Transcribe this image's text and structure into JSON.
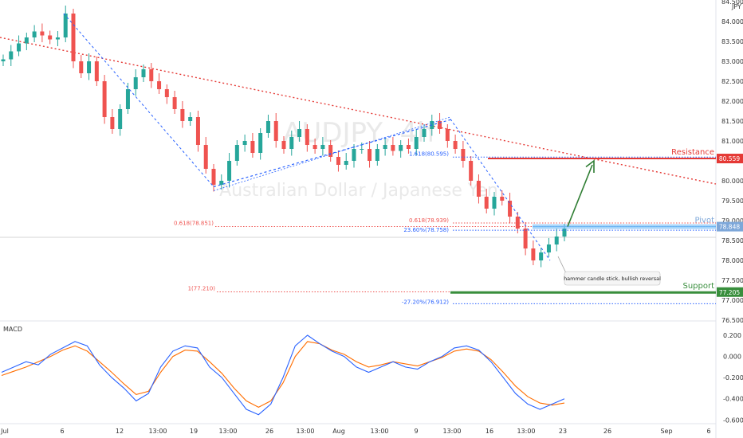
{
  "chart_data": {
    "type": "candlestick",
    "currency_unit": "JPY",
    "watermark_symbol": "AUDJPY, 4h",
    "watermark_name": "Australian Dollar / Japanese Yen",
    "price_axis": {
      "min": 76.5,
      "max": 84.5,
      "ticks": [
        "84.500",
        "84.000",
        "83.500",
        "83.000",
        "82.500",
        "82.000",
        "81.500",
        "81.000",
        "80.500",
        "80.000",
        "79.500",
        "79.000",
        "78.500",
        "78.000",
        "77.500",
        "77.000",
        "76.500"
      ]
    },
    "x_axis_ticks": [
      "Jul",
      "6",
      "12",
      "13:00",
      "19",
      "13:00",
      "26",
      "13:00",
      "Aug",
      "13:00",
      "9",
      "13:00",
      "16",
      "13:00",
      "23",
      "26",
      "Sep",
      "6"
    ],
    "price_labels": {
      "resistance": "80.559",
      "pivot": "78.848",
      "support": "77.205"
    },
    "levels": {
      "resistance": 80.559,
      "pivot": 78.848,
      "support": 77.205
    },
    "level_titles": {
      "resistance": "Resistance",
      "pivot": "Pivot",
      "support": "Support"
    },
    "fib_labels": {
      "fib_1618": "1.618(80.595)",
      "fib_0618_right": "0.618(78.939)",
      "fib_236": "23.60%(78.758)",
      "fib_0618_left": "0.618(78.851)",
      "fib_1": "1(77.210)",
      "fib_neg272": "-27.20%(76.912)"
    },
    "annotation": "hammer candle stick, bullish reversal",
    "price_series": [
      83.05,
      83.25,
      83.45,
      83.6,
      83.75,
      83.65,
      83.55,
      83.6,
      84.2,
      83.0,
      82.7,
      83.0,
      82.5,
      81.6,
      81.3,
      81.8,
      82.3,
      82.6,
      82.8,
      82.5,
      82.3,
      82.1,
      81.8,
      81.5,
      81.6,
      80.9,
      80.3,
      79.9,
      80.0,
      80.5,
      80.9,
      81.0,
      80.7,
      81.2,
      81.5,
      81.0,
      80.8,
      81.1,
      81.3,
      80.9,
      80.8,
      80.9,
      80.6,
      80.4,
      80.5,
      80.8,
      80.8,
      80.5,
      80.8,
      80.9,
      80.75,
      80.9,
      80.8,
      81.1,
      81.3,
      81.5,
      81.3,
      81.0,
      80.8,
      80.5,
      80.0,
      79.6,
      79.3,
      79.6,
      79.5,
      79.1,
      78.8,
      78.3,
      78.0,
      78.2,
      78.4,
      78.6,
      78.8
    ],
    "macd": {
      "axis_ticks": [
        "0.200",
        "0.000",
        "-0.200",
        "-0.400",
        "-0.600"
      ],
      "range": [
        -0.62,
        0.32
      ],
      "macd_values": [
        -0.15,
        -0.1,
        -0.05,
        -0.08,
        0.02,
        0.08,
        0.14,
        0.1,
        -0.08,
        -0.2,
        -0.3,
        -0.42,
        -0.35,
        -0.1,
        0.05,
        0.1,
        0.08,
        -0.1,
        -0.2,
        -0.35,
        -0.5,
        -0.55,
        -0.45,
        -0.2,
        0.1,
        0.2,
        0.12,
        0.05,
        0.0,
        -0.1,
        -0.15,
        -0.1,
        -0.05,
        -0.1,
        -0.12,
        -0.05,
        0.0,
        0.08,
        0.1,
        0.06,
        -0.05,
        -0.2,
        -0.35,
        -0.45,
        -0.5,
        -0.45,
        -0.4
      ],
      "signal_values": [
        -0.18,
        -0.14,
        -0.1,
        -0.05,
        0.0,
        0.06,
        0.1,
        0.05,
        -0.05,
        -0.15,
        -0.26,
        -0.36,
        -0.33,
        -0.15,
        0.0,
        0.06,
        0.05,
        -0.05,
        -0.16,
        -0.3,
        -0.42,
        -0.48,
        -0.42,
        -0.25,
        0.0,
        0.14,
        0.12,
        0.06,
        0.02,
        -0.05,
        -0.1,
        -0.08,
        -0.05,
        -0.07,
        -0.09,
        -0.05,
        -0.01,
        0.05,
        0.07,
        0.05,
        -0.03,
        -0.15,
        -0.28,
        -0.38,
        -0.44,
        -0.46,
        -0.44
      ],
      "title": "MACD"
    },
    "colors": {
      "up": "#26a69a",
      "down": "#ef5350",
      "resistance": "#e53935",
      "support": "#388e3c",
      "pivot": "#64b5f6",
      "macd": "#2962ff",
      "signal": "#ff6d00",
      "trend": "#e53935",
      "fib_blue": "#2962ff",
      "arrow": "#2e7d32"
    }
  }
}
